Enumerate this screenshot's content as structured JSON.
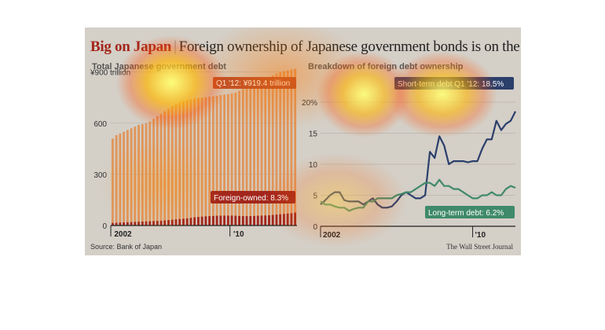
{
  "header": {
    "title_highlight": "Big on Japan",
    "title_separator": "|",
    "title_rest": "Foreign ownership of Japanese government bonds is on the rise"
  },
  "source": "Source: Bank of Japan",
  "credit": "The Wall Street Journal",
  "colors": {
    "background": "#d4cfc7",
    "total_bars": "#e0955a",
    "foreign_bars": "#a3261c",
    "short_term": "#2b3f6b",
    "long_term": "#3f8a6a",
    "highlight_text": "#a3261c"
  },
  "chart_data": [
    {
      "type": "bar",
      "title": "Total Japanese government debt",
      "x_tick_labels": [
        "2002",
        "'10"
      ],
      "y_tick_labels": [
        "0",
        "300",
        "600",
        "¥900 trillion"
      ],
      "ylim": [
        0,
        1000
      ],
      "grid": true,
      "start_quarter": "2002 Q1",
      "series": [
        {
          "name": "Total",
          "values": [
            510,
            530,
            540,
            550,
            560,
            570,
            580,
            590,
            595,
            600,
            610,
            625,
            640,
            655,
            670,
            685,
            700,
            710,
            720,
            728,
            735,
            740,
            745,
            748,
            750,
            752,
            755,
            758,
            760,
            765,
            768,
            770,
            775,
            780,
            790,
            800,
            810,
            820,
            830,
            840,
            850,
            860,
            870,
            880,
            890,
            900,
            905,
            910,
            915,
            919.4
          ]
        },
        {
          "name": "Foreign-owned",
          "values": [
            15,
            16,
            17,
            18,
            19,
            20,
            21,
            22,
            23,
            24,
            25,
            26,
            27,
            28,
            30,
            32,
            34,
            36,
            38,
            40,
            42,
            45,
            48,
            50,
            52,
            54,
            55,
            56,
            57,
            58,
            58,
            58,
            58,
            57,
            56,
            55,
            55,
            55,
            56,
            57,
            58,
            59,
            60,
            62,
            64,
            66,
            68,
            70,
            72,
            76
          ]
        }
      ],
      "annotations": [
        {
          "label": "Q1 '12:",
          "value": "¥919.4 trillion"
        },
        {
          "label": "Foreign-owned:",
          "value": "8.3%"
        }
      ]
    },
    {
      "type": "line",
      "title": "Breakdown of foreign debt ownership",
      "x_tick_labels": [
        "2002",
        "'10"
      ],
      "y_tick_labels": [
        "0",
        "5",
        "10",
        "15",
        "20%"
      ],
      "ylim": [
        0,
        20
      ],
      "grid": true,
      "start_quarter": "2002 Q1",
      "series": [
        {
          "name": "Short-term debt",
          "values": [
            3.5,
            4.2,
            5.0,
            5.5,
            5.5,
            4.2,
            4.0,
            4.0,
            4.0,
            3.5,
            4.0,
            4.5,
            3.5,
            3.0,
            3.0,
            3.2,
            4.0,
            5.0,
            5.5,
            5.0,
            4.5,
            4.5,
            5.0,
            12.0,
            11.0,
            14.5,
            13.0,
            10.0,
            10.5,
            10.5,
            10.5,
            10.3,
            10.5,
            10.5,
            12.5,
            14.0,
            14.0,
            17.0,
            15.5,
            16.5,
            17.0,
            18.5
          ]
        },
        {
          "name": "Long-term debt",
          "values": [
            4.0,
            3.5,
            3.5,
            3.2,
            3.0,
            3.0,
            2.5,
            2.8,
            3.0,
            3.0,
            4.0,
            4.0,
            4.5,
            4.5,
            4.5,
            4.5,
            5.0,
            5.2,
            5.5,
            5.5,
            6.0,
            6.5,
            7.0,
            7.0,
            6.5,
            7.5,
            6.5,
            6.5,
            6.0,
            6.0,
            5.5,
            5.0,
            4.5,
            4.5,
            5.0,
            5.0,
            5.5,
            5.0,
            5.0,
            6.0,
            6.5,
            6.2
          ]
        }
      ],
      "annotations": [
        {
          "label": "Short-term debt Q1 '12:",
          "value": "18.5%"
        },
        {
          "label": "Long-term debt:",
          "value": "6.2%"
        }
      ]
    }
  ]
}
